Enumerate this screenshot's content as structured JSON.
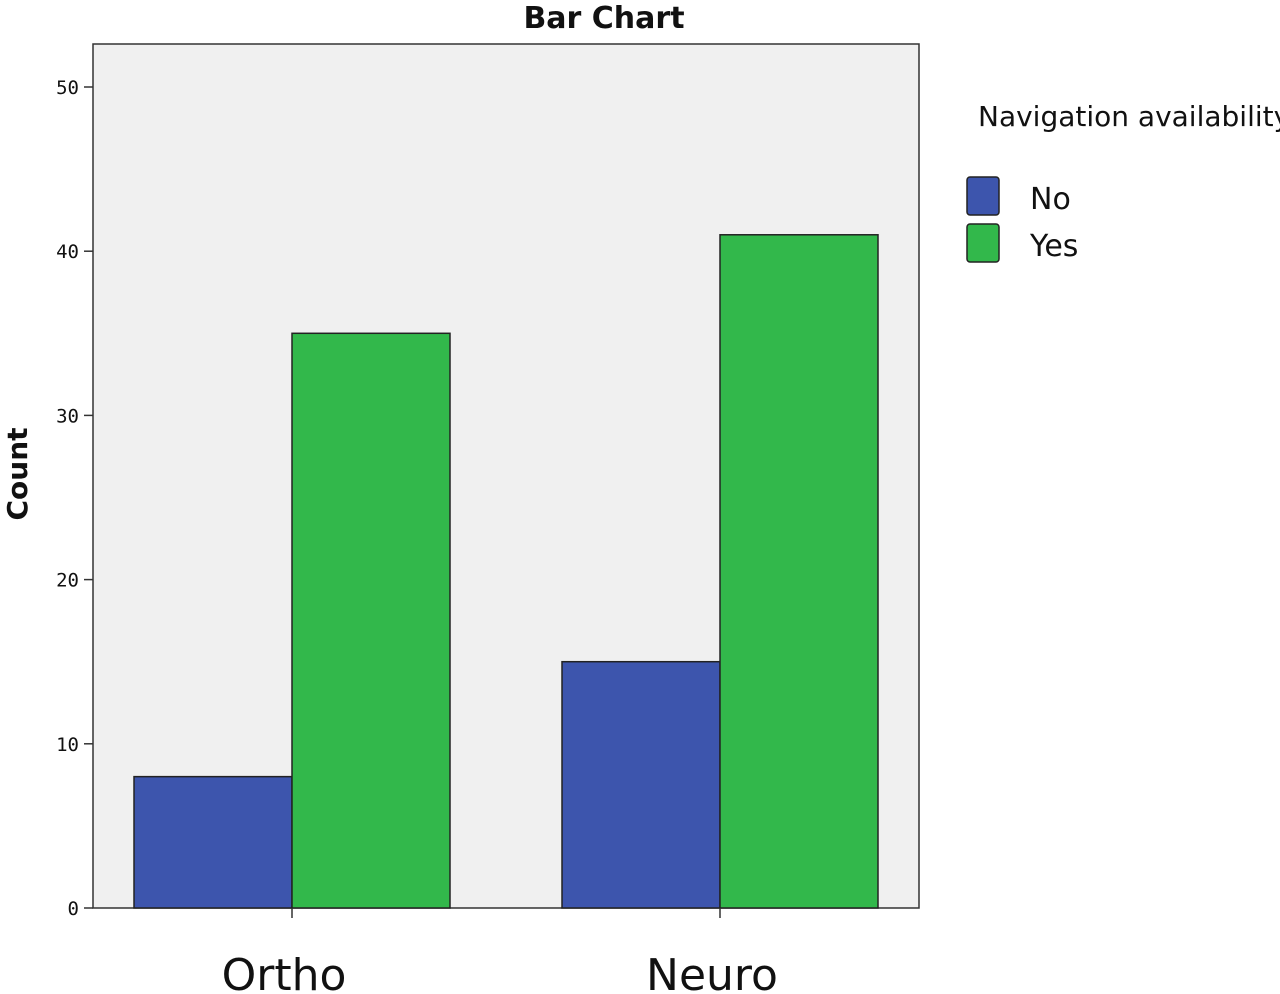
{
  "chart_data": {
    "type": "bar",
    "title": "Bar Chart",
    "xlabel": "",
    "ylabel": "Count",
    "ylim": [
      0,
      50
    ],
    "yticks": [
      0,
      10,
      20,
      30,
      40,
      50
    ],
    "grid": false,
    "categories": [
      "Ortho",
      "Neuro"
    ],
    "legend": {
      "title": "Navigation availability",
      "position": "right"
    },
    "series": [
      {
        "name": "No",
        "values": [
          8,
          15
        ],
        "color": "#3d55ad"
      },
      {
        "name": "Yes",
        "values": [
          35,
          41
        ],
        "color": "#32b84b"
      }
    ],
    "colors": {
      "plot_background": "#f0f0f0",
      "bar_edge": "#222222"
    }
  }
}
